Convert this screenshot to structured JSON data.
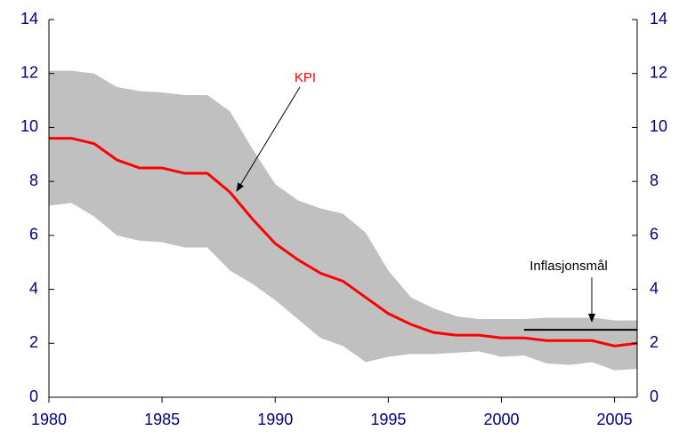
{
  "chart_data": {
    "type": "line",
    "x": [
      1980,
      1981,
      1982,
      1983,
      1984,
      1985,
      1986,
      1987,
      1988,
      1989,
      1990,
      1991,
      1992,
      1993,
      1994,
      1995,
      1996,
      1997,
      1998,
      1999,
      2000,
      2001,
      2002,
      2003,
      2004,
      2005,
      2006
    ],
    "series": [
      {
        "name": "KPI",
        "color": "#ff0000",
        "values": [
          9.6,
          9.6,
          9.4,
          8.8,
          8.5,
          8.5,
          8.3,
          8.3,
          7.6,
          6.6,
          5.7,
          5.1,
          4.6,
          4.3,
          3.7,
          3.1,
          2.7,
          2.4,
          2.3,
          2.3,
          2.2,
          2.2,
          2.1,
          2.1,
          2.1,
          1.9,
          2.0
        ]
      },
      {
        "name": "Inflasjonsmål",
        "color": "#000000",
        "values": [
          null,
          null,
          null,
          null,
          null,
          null,
          null,
          null,
          null,
          null,
          null,
          null,
          null,
          null,
          null,
          null,
          null,
          null,
          null,
          null,
          null,
          2.5,
          2.5,
          2.5,
          2.5,
          2.5,
          2.5
        ]
      }
    ],
    "band": {
      "color": "#c0c0c0",
      "upper": [
        12.1,
        12.1,
        12.0,
        11.5,
        11.35,
        11.3,
        11.2,
        11.2,
        10.6,
        9.2,
        7.9,
        7.3,
        7.0,
        6.8,
        6.1,
        4.7,
        3.7,
        3.3,
        3.0,
        2.9,
        2.9,
        2.9,
        2.95,
        2.95,
        2.95,
        2.85,
        2.85
      ],
      "lower": [
        7.1,
        7.2,
        6.7,
        6.0,
        5.8,
        5.75,
        5.55,
        5.55,
        4.7,
        4.2,
        3.6,
        2.9,
        2.2,
        1.9,
        1.3,
        1.5,
        1.6,
        1.6,
        1.65,
        1.7,
        1.5,
        1.55,
        1.25,
        1.2,
        1.3,
        1.0,
        1.05
      ]
    },
    "xlim": [
      1980,
      2006
    ],
    "xticks": [
      1980,
      1985,
      1990,
      1995,
      2000,
      2005
    ],
    "ylim": [
      0,
      14
    ],
    "yticks": [
      0,
      2,
      4,
      6,
      8,
      10,
      12,
      14
    ],
    "y2lim": [
      0,
      14
    ],
    "y2ticks": [
      0,
      2,
      4,
      6,
      8,
      10,
      12,
      14
    ]
  }
}
